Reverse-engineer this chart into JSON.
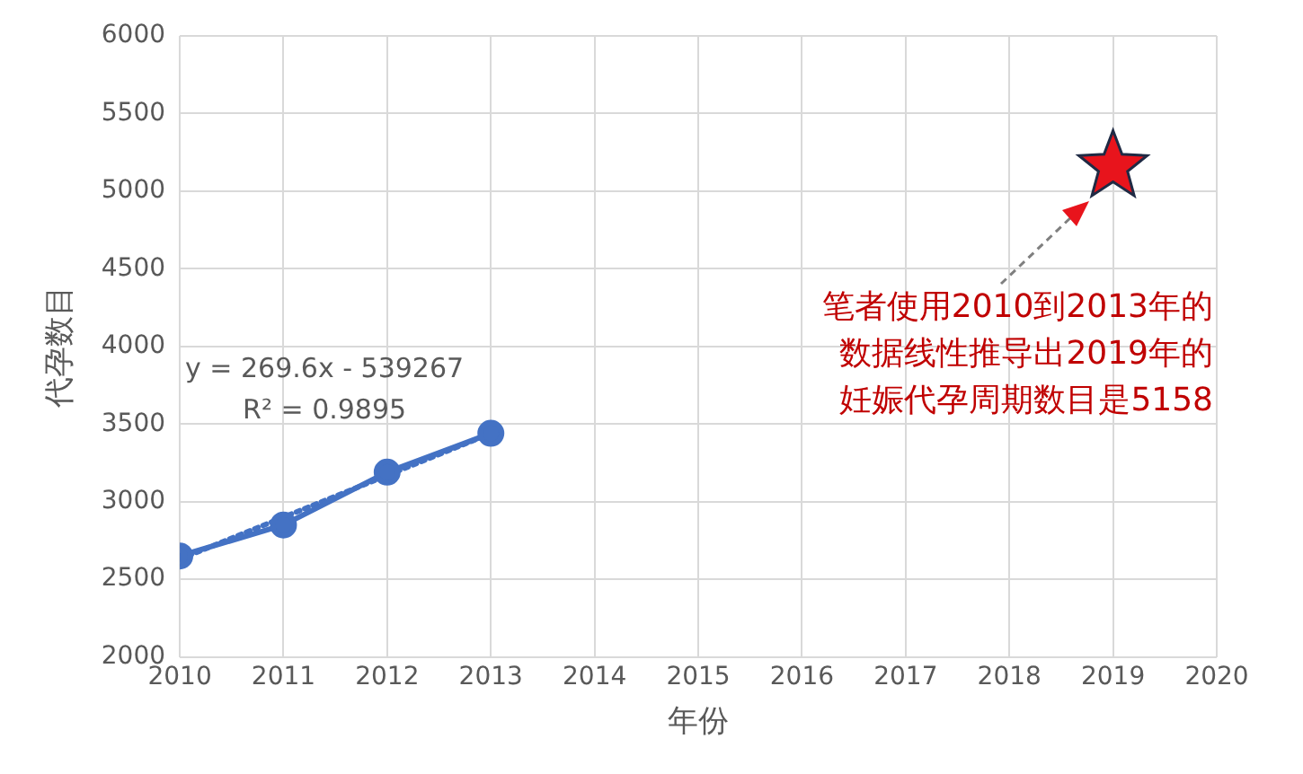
{
  "chart_data": {
    "type": "line",
    "xlabel": "年份",
    "ylabel": "代孕数目",
    "xlim": [
      2010,
      2020
    ],
    "xticks": [
      2010,
      2011,
      2012,
      2013,
      2014,
      2015,
      2016,
      2017,
      2018,
      2019,
      2020
    ],
    "ylim": [
      2000,
      6000
    ],
    "yticks": [
      2000,
      2500,
      3000,
      3500,
      4000,
      4500,
      5000,
      5500,
      6000
    ],
    "grid": true,
    "legend": false,
    "series": [
      {
        "color": "#4472c4",
        "marker": "circle",
        "line_style": "solid",
        "x": [
          2010,
          2011,
          2012,
          2013
        ],
        "values": [
          2650,
          2850,
          3190,
          3440
        ]
      },
      {
        "color": "#4472c4",
        "marker": "none",
        "line_style": "dotted",
        "x": [
          2010,
          2013
        ],
        "values": [
          2630,
          3440
        ]
      },
      {
        "type": "scatter",
        "color": "#e8141c",
        "marker": "star",
        "x": [
          2019
        ],
        "values": [
          5158
        ]
      }
    ],
    "annotations": [
      "y = 269.6x - 539267",
      "R² = 0.9895",
      "笔者使用2010到2013年的",
      "数据线性推导出2019年的",
      "妊娠代孕周期数目是5158"
    ]
  }
}
